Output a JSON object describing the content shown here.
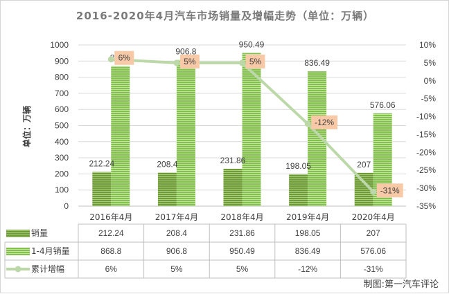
{
  "chart_data": {
    "type": "bar",
    "title": "2016-2020年4月汽车市场销量及增幅走势（单位：万辆）",
    "ylabel": "单位：万辆",
    "ylim": [
      0,
      1000
    ],
    "y_ticks": [
      "0",
      "100",
      "200",
      "300",
      "400",
      "500",
      "600",
      "700",
      "800",
      "900",
      "1000"
    ],
    "y2lim": [
      -35,
      10
    ],
    "y2_ticks": [
      "10%",
      "5%",
      "0%",
      "-5%",
      "-10%",
      "-15%",
      "-20%",
      "-25%",
      "-30%",
      "-35%"
    ],
    "categories": [
      "2016年4月",
      "2017年4月",
      "2018年4月",
      "2019年4月",
      "2020年4月"
    ],
    "series": [
      {
        "name": "销量",
        "type": "bar",
        "color": "#76a33e",
        "values": [
          212.24,
          208.4,
          231.86,
          198.05,
          207
        ],
        "labels": [
          "212.24",
          "208.4",
          "231.86",
          "198.05",
          "207"
        ]
      },
      {
        "name": "1-4月销量",
        "type": "bar",
        "color": "#8fca58",
        "values": [
          868.8,
          906.8,
          950.49,
          836.49,
          576.06
        ],
        "labels": [
          "868.8",
          "906.8",
          "950.49",
          "836.49",
          "576.06"
        ]
      },
      {
        "name": "累计增幅",
        "type": "line",
        "axis": "right",
        "color": "#bcd8a8",
        "values": [
          6,
          5,
          5,
          -12,
          -31
        ],
        "labels": [
          "6%",
          "5%",
          "5%",
          "-12%",
          "-31%"
        ]
      }
    ],
    "grid": true,
    "legend": "data-table"
  },
  "credit": "制图:第一汽车评论"
}
